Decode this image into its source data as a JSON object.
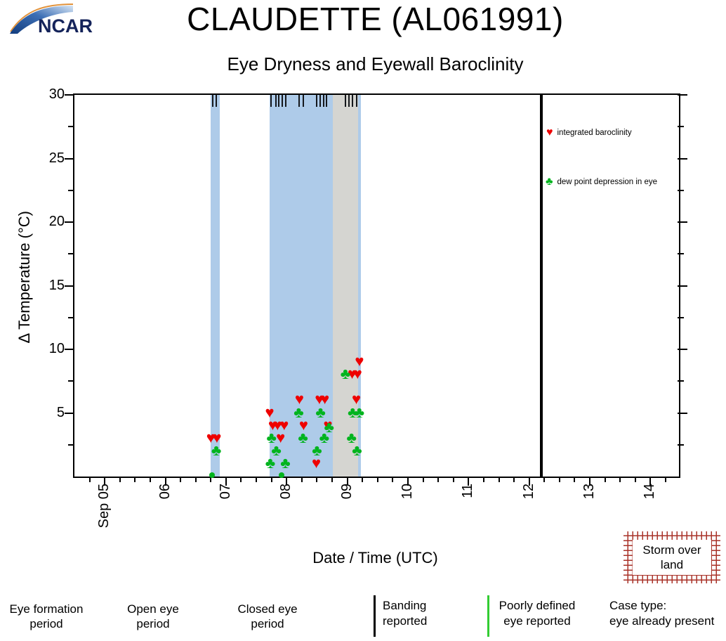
{
  "header": {
    "logo_text": "NCAR"
  },
  "chart_data": {
    "type": "scatter",
    "title": "CLAUDETTE (AL061991)",
    "subtitle": "Eye Dryness and Eyewall Baroclinity",
    "xlabel": "Date / Time (UTC)",
    "ylabel": "Δ Temperature (°C)",
    "x_domain": [
      4.5,
      14.47
    ],
    "y_domain": [
      0,
      30
    ],
    "x_unit": "day of September",
    "x_major_ticks": [
      {
        "day": 5,
        "label": "Sep 05"
      },
      {
        "day": 6,
        "label": "06"
      },
      {
        "day": 7,
        "label": "07"
      },
      {
        "day": 8,
        "label": "08"
      },
      {
        "day": 9,
        "label": "09"
      },
      {
        "day": 10,
        "label": "10"
      },
      {
        "day": 11,
        "label": "11"
      },
      {
        "day": 12,
        "label": "12"
      },
      {
        "day": 13,
        "label": "13"
      },
      {
        "day": 14,
        "label": "14"
      }
    ],
    "x_minor_step": 0.25,
    "y_major_ticks": [
      5,
      10,
      15,
      20,
      25,
      30
    ],
    "y_minor_ticks": [
      2.5,
      7.5,
      12.5,
      17.5,
      22.5,
      27.5
    ],
    "bands": [
      {
        "from": 6.75,
        "to": 6.9,
        "type": "closed-eye",
        "color": "#aecbe9"
      },
      {
        "from": 7.72,
        "to": 8.76,
        "type": "closed-eye",
        "color": "#aecbe9"
      },
      {
        "from": 8.76,
        "to": 9.18,
        "type": "open-eye",
        "color": "#d5d5d1"
      },
      {
        "from": 9.18,
        "to": 9.23,
        "type": "closed-eye",
        "color": "#aecbe9"
      }
    ],
    "banding_marks_days": [
      6.78,
      6.84,
      7.74,
      7.82,
      7.87,
      7.93,
      7.99,
      8.2,
      8.28,
      8.49,
      8.55,
      8.61,
      8.66,
      8.97,
      9.03,
      9.09,
      9.15
    ],
    "event_line_day": 12.2,
    "series": [
      {
        "name": "integrated baroclinity",
        "marker": "heart",
        "color": "#ee0000",
        "points": [
          [
            6.75,
            3
          ],
          [
            6.85,
            3
          ],
          [
            7.72,
            5
          ],
          [
            7.77,
            4
          ],
          [
            7.85,
            4
          ],
          [
            7.9,
            3
          ],
          [
            7.96,
            4
          ],
          [
            8.21,
            6
          ],
          [
            8.28,
            4
          ],
          [
            8.49,
            1
          ],
          [
            8.54,
            6
          ],
          [
            8.63,
            6
          ],
          [
            8.68,
            4
          ],
          [
            9.08,
            8
          ],
          [
            9.15,
            6
          ],
          [
            9.17,
            8
          ],
          [
            9.2,
            9
          ]
        ]
      },
      {
        "name": "dew point depression in eye",
        "marker": "club",
        "color": "#00b41e",
        "points": [
          [
            6.77,
            0.1
          ],
          [
            6.84,
            2
          ],
          [
            7.73,
            1
          ],
          [
            7.75,
            3
          ],
          [
            7.83,
            2
          ],
          [
            7.92,
            0.1
          ],
          [
            7.98,
            1
          ],
          [
            8.2,
            5
          ],
          [
            8.27,
            3
          ],
          [
            8.5,
            2
          ],
          [
            8.56,
            5
          ],
          [
            8.62,
            3
          ],
          [
            8.7,
            3.8
          ],
          [
            8.97,
            8
          ],
          [
            9.07,
            3
          ],
          [
            9.09,
            5
          ],
          [
            9.16,
            2
          ],
          [
            9.2,
            5
          ]
        ]
      }
    ],
    "legend": [
      {
        "marker": "heart",
        "symbol": "♥",
        "color": "#ee0000",
        "label": "integrated baroclinity"
      },
      {
        "marker": "club",
        "symbol": "♣",
        "color": "#00b41e",
        "label": "dew point depression in eye"
      }
    ],
    "legend_position": "inside top-right"
  },
  "bottom_legend": {
    "eye_formation": {
      "label": "Eye formation period",
      "color": "#ffafc0"
    },
    "open_eye": {
      "label": "Open eye period",
      "color": "#d5d5d1"
    },
    "closed_eye": {
      "label": "Closed eye period",
      "color": "#aecbe9"
    },
    "banding": {
      "label": "Banding reported",
      "line_color": "#000000"
    },
    "poorly_defined": {
      "label": "Poorly defined eye reported",
      "line_color": "#33cc33"
    },
    "case_type": {
      "label": "Case type:",
      "value": "eye already present"
    }
  },
  "storm_box": {
    "line1": "Storm over",
    "line2": "land",
    "hatch_color": "#a83228"
  }
}
